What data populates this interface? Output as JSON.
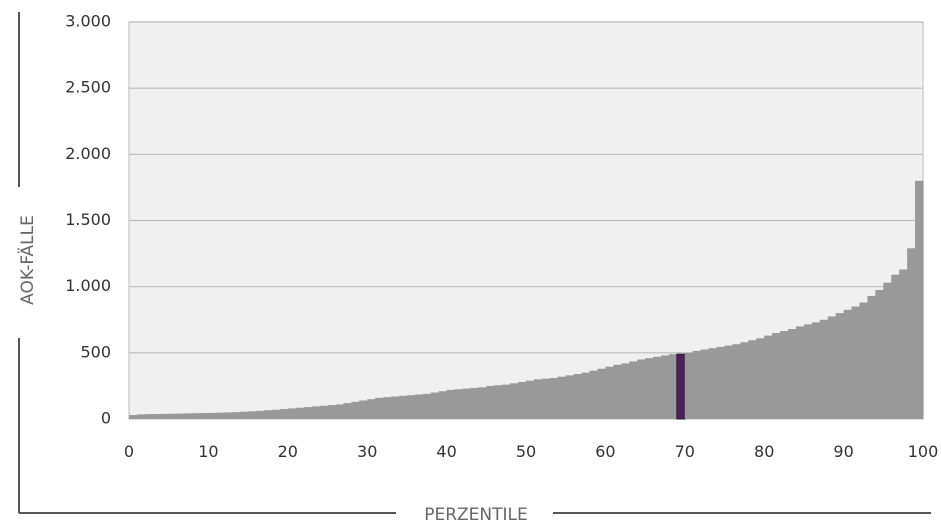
{
  "chart_data": {
    "type": "bar",
    "xlabel": "PERZENTILE",
    "ylabel": "AOK-FÄLLE",
    "ylim": [
      0,
      3000
    ],
    "yticks": [
      0,
      500,
      1000,
      1500,
      2000,
      2500,
      3000
    ],
    "ytick_labels": [
      "0",
      "500",
      "1.000",
      "1.500",
      "2.000",
      "2.500",
      "3.000"
    ],
    "xlim": [
      0,
      100
    ],
    "xticks": [
      0,
      10,
      20,
      30,
      40,
      50,
      60,
      70,
      80,
      90,
      100
    ],
    "xtick_labels": [
      "0",
      "10",
      "20",
      "30",
      "40",
      "50",
      "60",
      "70",
      "80",
      "90",
      "100"
    ],
    "grid": true,
    "x": [
      1,
      2,
      3,
      4,
      5,
      6,
      7,
      8,
      9,
      10,
      11,
      12,
      13,
      14,
      15,
      16,
      17,
      18,
      19,
      20,
      21,
      22,
      23,
      24,
      25,
      26,
      27,
      28,
      29,
      30,
      31,
      32,
      33,
      34,
      35,
      36,
      37,
      38,
      39,
      40,
      41,
      42,
      43,
      44,
      45,
      46,
      47,
      48,
      49,
      50,
      51,
      52,
      53,
      54,
      55,
      56,
      57,
      58,
      59,
      60,
      61,
      62,
      63,
      64,
      65,
      66,
      67,
      68,
      69,
      70,
      71,
      72,
      73,
      74,
      75,
      76,
      77,
      78,
      79,
      80,
      81,
      82,
      83,
      84,
      85,
      86,
      87,
      88,
      89,
      90,
      91,
      92,
      93,
      94,
      95,
      96,
      97,
      98,
      99,
      100
    ],
    "values": [
      30,
      35,
      37,
      38,
      39,
      40,
      41,
      43,
      44,
      45,
      46,
      48,
      50,
      52,
      55,
      58,
      62,
      66,
      70,
      75,
      80,
      85,
      90,
      95,
      100,
      105,
      110,
      120,
      130,
      140,
      150,
      160,
      165,
      170,
      175,
      180,
      185,
      190,
      200,
      210,
      220,
      225,
      230,
      235,
      240,
      250,
      255,
      260,
      270,
      280,
      290,
      300,
      305,
      310,
      320,
      330,
      340,
      350,
      365,
      380,
      395,
      410,
      420,
      435,
      450,
      460,
      470,
      480,
      490,
      490,
      500,
      515,
      525,
      535,
      545,
      555,
      565,
      580,
      595,
      610,
      630,
      650,
      665,
      680,
      700,
      715,
      730,
      750,
      775,
      800,
      825,
      850,
      880,
      930,
      975,
      1030,
      1090,
      1130,
      1290,
      1800
    ],
    "highlight_x": 70,
    "colors": {
      "bar": "#999999",
      "highlight": "#4d1f5c",
      "plot_background": "#f0f0f0",
      "grid": "#bbbbbb",
      "frame_line": "#555555"
    }
  }
}
